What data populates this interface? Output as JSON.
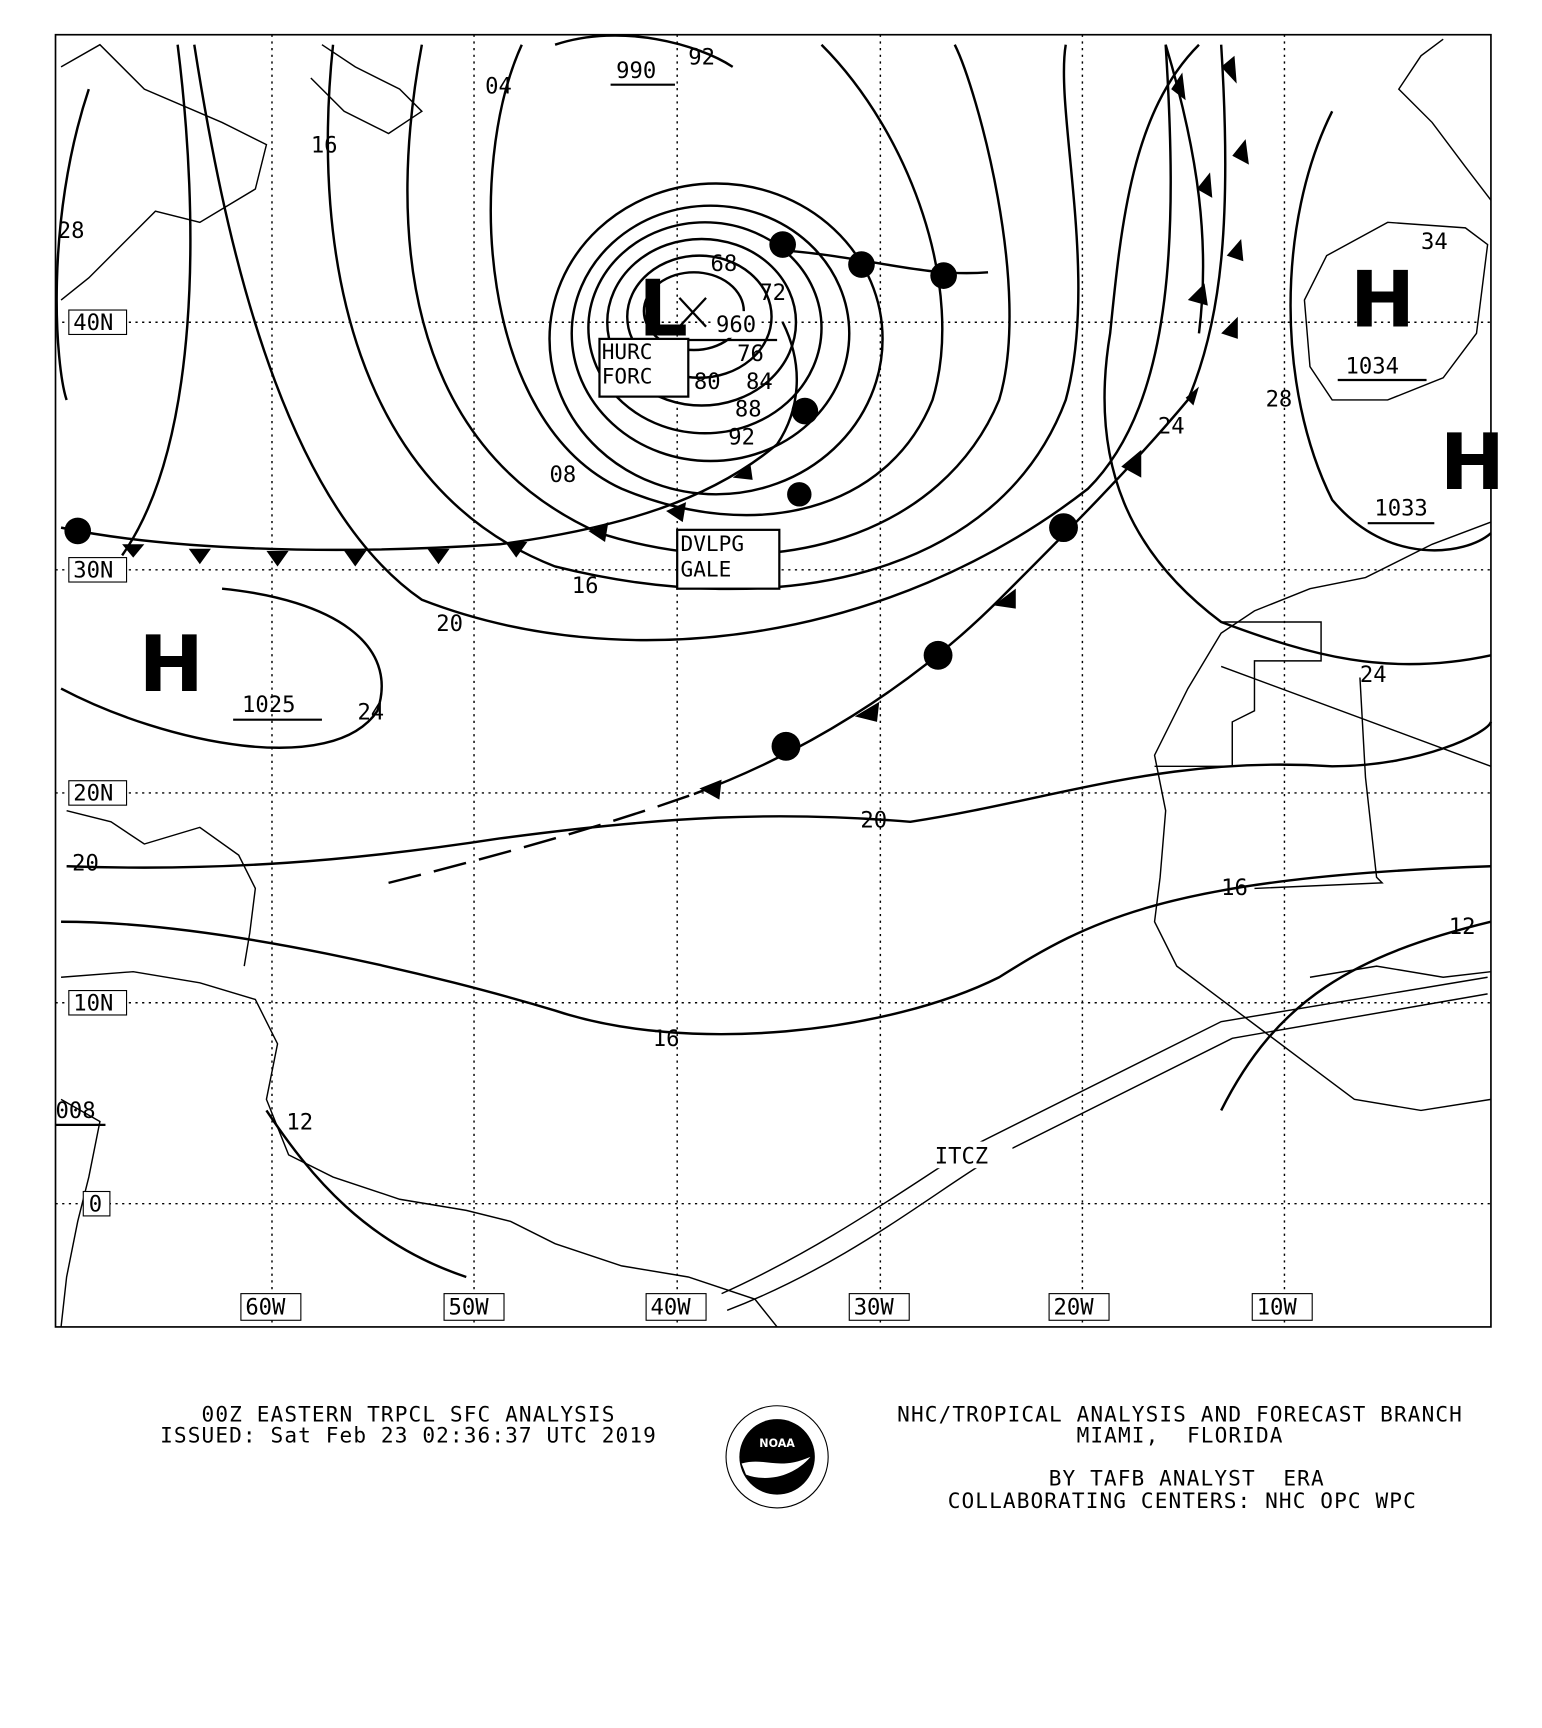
{
  "map": {
    "latitude_labels": [
      "40N",
      "30N",
      "20N",
      "10N",
      "0"
    ],
    "longitude_labels": [
      "60W",
      "50W",
      "40W",
      "30W",
      "20W",
      "10W"
    ],
    "isobar_labels": [
      "04",
      "16",
      "28",
      "990",
      "92",
      "08",
      "16",
      "20",
      "24",
      "20",
      "20",
      "16",
      "12",
      "16",
      "12",
      "24",
      "28",
      "24",
      "34",
      "008",
      "68",
      "72",
      "76",
      "80",
      "84",
      "88",
      "92"
    ],
    "pressure_centers": [
      {
        "type": "L",
        "value": "960"
      },
      {
        "type": "H",
        "value": "1025"
      },
      {
        "type": "H",
        "value": "1034"
      },
      {
        "type": "H",
        "value": "1033"
      }
    ],
    "warnings": [
      "HURC FORC",
      "DVLPG GALE"
    ],
    "features": [
      "ITCZ"
    ],
    "colors": {
      "ink": "#000000",
      "background": "#ffffff"
    }
  },
  "footer": {
    "title": "00Z EASTERN TRPCL SFC ANALYSIS",
    "issued": "ISSUED: Sat Feb 23 02:36:37 UTC 2019",
    "branch": "NHC/TROPICAL ANALYSIS AND FORECAST BRANCH",
    "location": "MIAMI,  FLORIDA",
    "analyst": "BY TAFB ANALYST  ERA",
    "centers": "COLLABORATING CENTERS: NHC OPC WPC",
    "logo_text": "NOAA"
  }
}
